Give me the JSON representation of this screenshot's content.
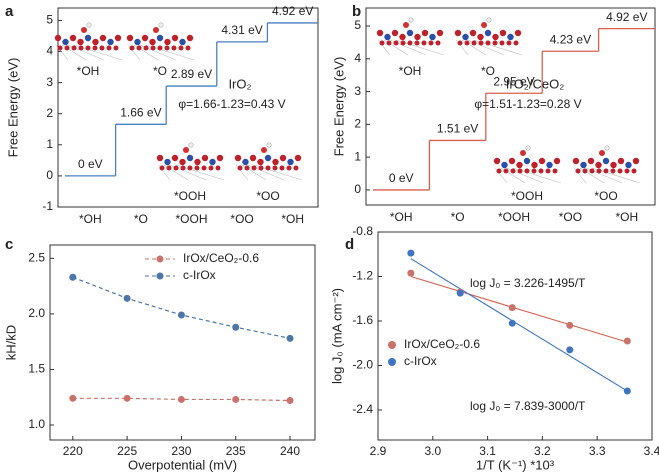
{
  "chart_data": [
    {
      "type": "step",
      "label": "a",
      "ylabel": "Free Energy (eV)",
      "categories": [
        "*OH",
        "*O",
        "*OOH",
        "*OO",
        "*OH"
      ],
      "values": [
        0,
        1.66,
        2.89,
        4.31,
        4.92
      ],
      "value_labels": [
        "0 eV",
        "1.66 eV",
        "2.89 eV",
        "4.31 eV",
        "4.92 eV"
      ],
      "color": "#4a7fc1",
      "ylim": [
        -1,
        5.4
      ],
      "yticks": [
        -1,
        0,
        1,
        2,
        3,
        4,
        5
      ],
      "series_label": "IrO₂",
      "annotation": "φ=1.66-1.23=0.43 V",
      "structure_labels": [
        "*OH",
        "*O",
        "*OOH",
        "*OO"
      ]
    },
    {
      "type": "step",
      "label": "b",
      "ylabel": "Free Energy (eV)",
      "categories": [
        "*OH",
        "*O",
        "*OOH",
        "*OO",
        "*OH"
      ],
      "values": [
        0,
        1.51,
        2.95,
        4.23,
        4.92
      ],
      "value_labels": [
        "0 eV",
        "1.51 eV",
        "2.95 eV",
        "4.23 eV",
        "4.92 eV"
      ],
      "color": "#d6604d",
      "ylim": [
        -0.46,
        5.55
      ],
      "yticks": [
        0,
        1,
        2,
        3,
        4,
        5
      ],
      "series_label": "IrO₂/CeO₂",
      "annotation": "φ=1.51-1.23=0.28 V",
      "structure_labels": [
        "*OH",
        "*O",
        "*OOH",
        "*OO"
      ]
    },
    {
      "type": "line",
      "label": "c",
      "xlabel": "Overpotential (mV)",
      "ylabel": "kH/kD",
      "x": [
        220,
        225,
        230,
        235,
        240
      ],
      "series": [
        {
          "name": "IrOx/CeO₂-0.6",
          "color": "#c8726a",
          "values": [
            1.24,
            1.24,
            1.23,
            1.23,
            1.22
          ]
        },
        {
          "name": "c-IrOx",
          "color": "#4a76a8",
          "values": [
            2.33,
            2.14,
            1.99,
            1.88,
            1.78
          ]
        }
      ],
      "xlim": [
        217.9,
        242.3
      ],
      "xticks": [
        220,
        225,
        230,
        235,
        240
      ],
      "ylim": [
        0.865,
        2.62
      ],
      "yticks": [
        {
          "value": 1,
          "label": "1.0"
        },
        1.5,
        {
          "value": 2,
          "label": "2.0"
        },
        2.5
      ],
      "legend": "upper center"
    },
    {
      "type": "scatter",
      "label": "d",
      "xlabel": "1/T (K⁻¹) *10³",
      "ylabel": "log J₀ (mA cm⁻²)",
      "series": [
        {
          "name": "IrOx/CeO₂-0.6",
          "color": "#c8726a",
          "x": [
            2.96,
            3.05,
            3.145,
            3.25,
            3.355
          ],
          "values": [
            -1.17,
            -1.34,
            -1.48,
            -1.64,
            -1.78
          ]
        },
        {
          "name": "c-IrOx",
          "color": "#3f74c0",
          "x": [
            2.96,
            3.05,
            3.145,
            3.25,
            3.355
          ],
          "values": [
            -0.99,
            -1.35,
            -1.62,
            -1.86,
            -2.23
          ]
        }
      ],
      "fits": [
        {
          "label": "log J₀ = 3.226-1495/T",
          "color": "#d6604d",
          "x": [
            2.96,
            3.355
          ],
          "values": [
            -1.2,
            -1.79
          ]
        },
        {
          "label": "log J₀ = 7.839-3000/T",
          "color": "#3f74c0",
          "x": [
            2.96,
            3.355
          ],
          "values": [
            -1.04,
            -2.23
          ]
        }
      ],
      "xlim": [
        2.9,
        3.4
      ],
      "xticks": [
        2.9,
        {
          "value": 3,
          "label": "3.0"
        },
        3.1,
        3.2,
        3.3,
        3.4
      ],
      "ylim": [
        -2.67,
        -0.8
      ],
      "yticks": [
        -0.8,
        -1.2,
        -1.6,
        {
          "value": -2,
          "label": "-2.0"
        },
        -2.4
      ],
      "legend": "center left"
    }
  ]
}
